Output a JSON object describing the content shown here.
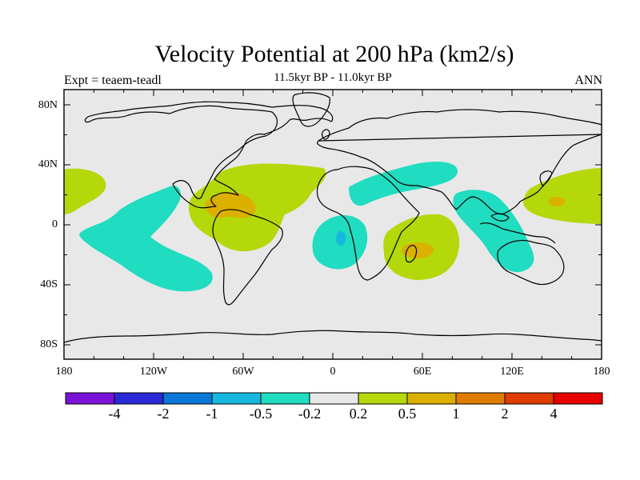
{
  "title": "Velocity Potential at 200 hPa (km2/s)",
  "subtitle": "11.5kyr BP - 11.0kyr BP",
  "left_label": "Expt = teaem-teadl",
  "right_label": "ANN",
  "map": {
    "projection": "cylindrical equidistant",
    "lon_range": [
      -180,
      180
    ],
    "lat_range": [
      -90,
      90
    ],
    "lat_ticks": [
      "80N",
      "40N",
      "0",
      "40S",
      "80S"
    ],
    "lon_ticks": [
      "180",
      "120W",
      "60W",
      "0",
      "60E",
      "120E",
      "180"
    ],
    "background_color": "#e8e8e8"
  },
  "colorbar": {
    "levels": [
      "-4",
      "-2",
      "-1",
      "-0.5",
      "-0.2",
      "0.2",
      "0.5",
      "1",
      "2",
      "4"
    ],
    "colors": [
      "#7a12d8",
      "#2a2ad8",
      "#0a78d8",
      "#16b8e0",
      "#20dcc0",
      "#e8e8e8",
      "#b4d80a",
      "#dcb000",
      "#e07c00",
      "#e03c00",
      "#e80000"
    ]
  }
}
